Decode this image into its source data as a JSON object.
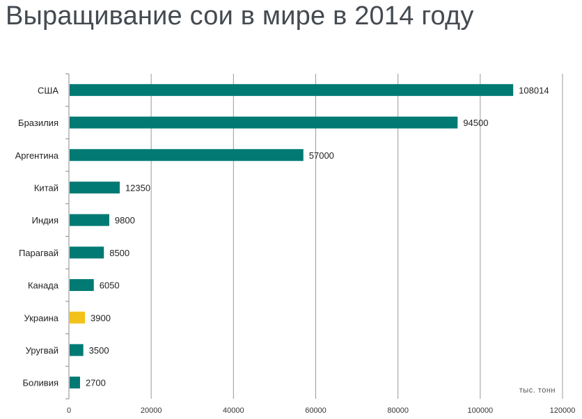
{
  "title": "Выращивание сои в мире в 2014 году",
  "unit_label": "тыс. тонн",
  "colors": {
    "bar": "#007a73",
    "highlight": "#f2c21a",
    "grid": "#999999"
  },
  "chart_data": {
    "type": "bar",
    "orientation": "horizontal",
    "title": "Выращивание сои в мире в 2014 году",
    "categories": [
      "США",
      "Бразилия",
      "Аргентина",
      "Китай",
      "Индия",
      "Парагвай",
      "Канада",
      "Украина",
      "Уругвай",
      "Боливия"
    ],
    "values": [
      108014,
      94500,
      57000,
      12350,
      9800,
      8500,
      6050,
      3900,
      3500,
      2700
    ],
    "highlight_category": "Украина",
    "xlim": [
      0,
      120000
    ],
    "xticks": [
      0,
      20000,
      40000,
      60000,
      80000,
      100000,
      120000
    ],
    "grid": true,
    "unit": "тыс. тонн",
    "data_labels": true
  }
}
